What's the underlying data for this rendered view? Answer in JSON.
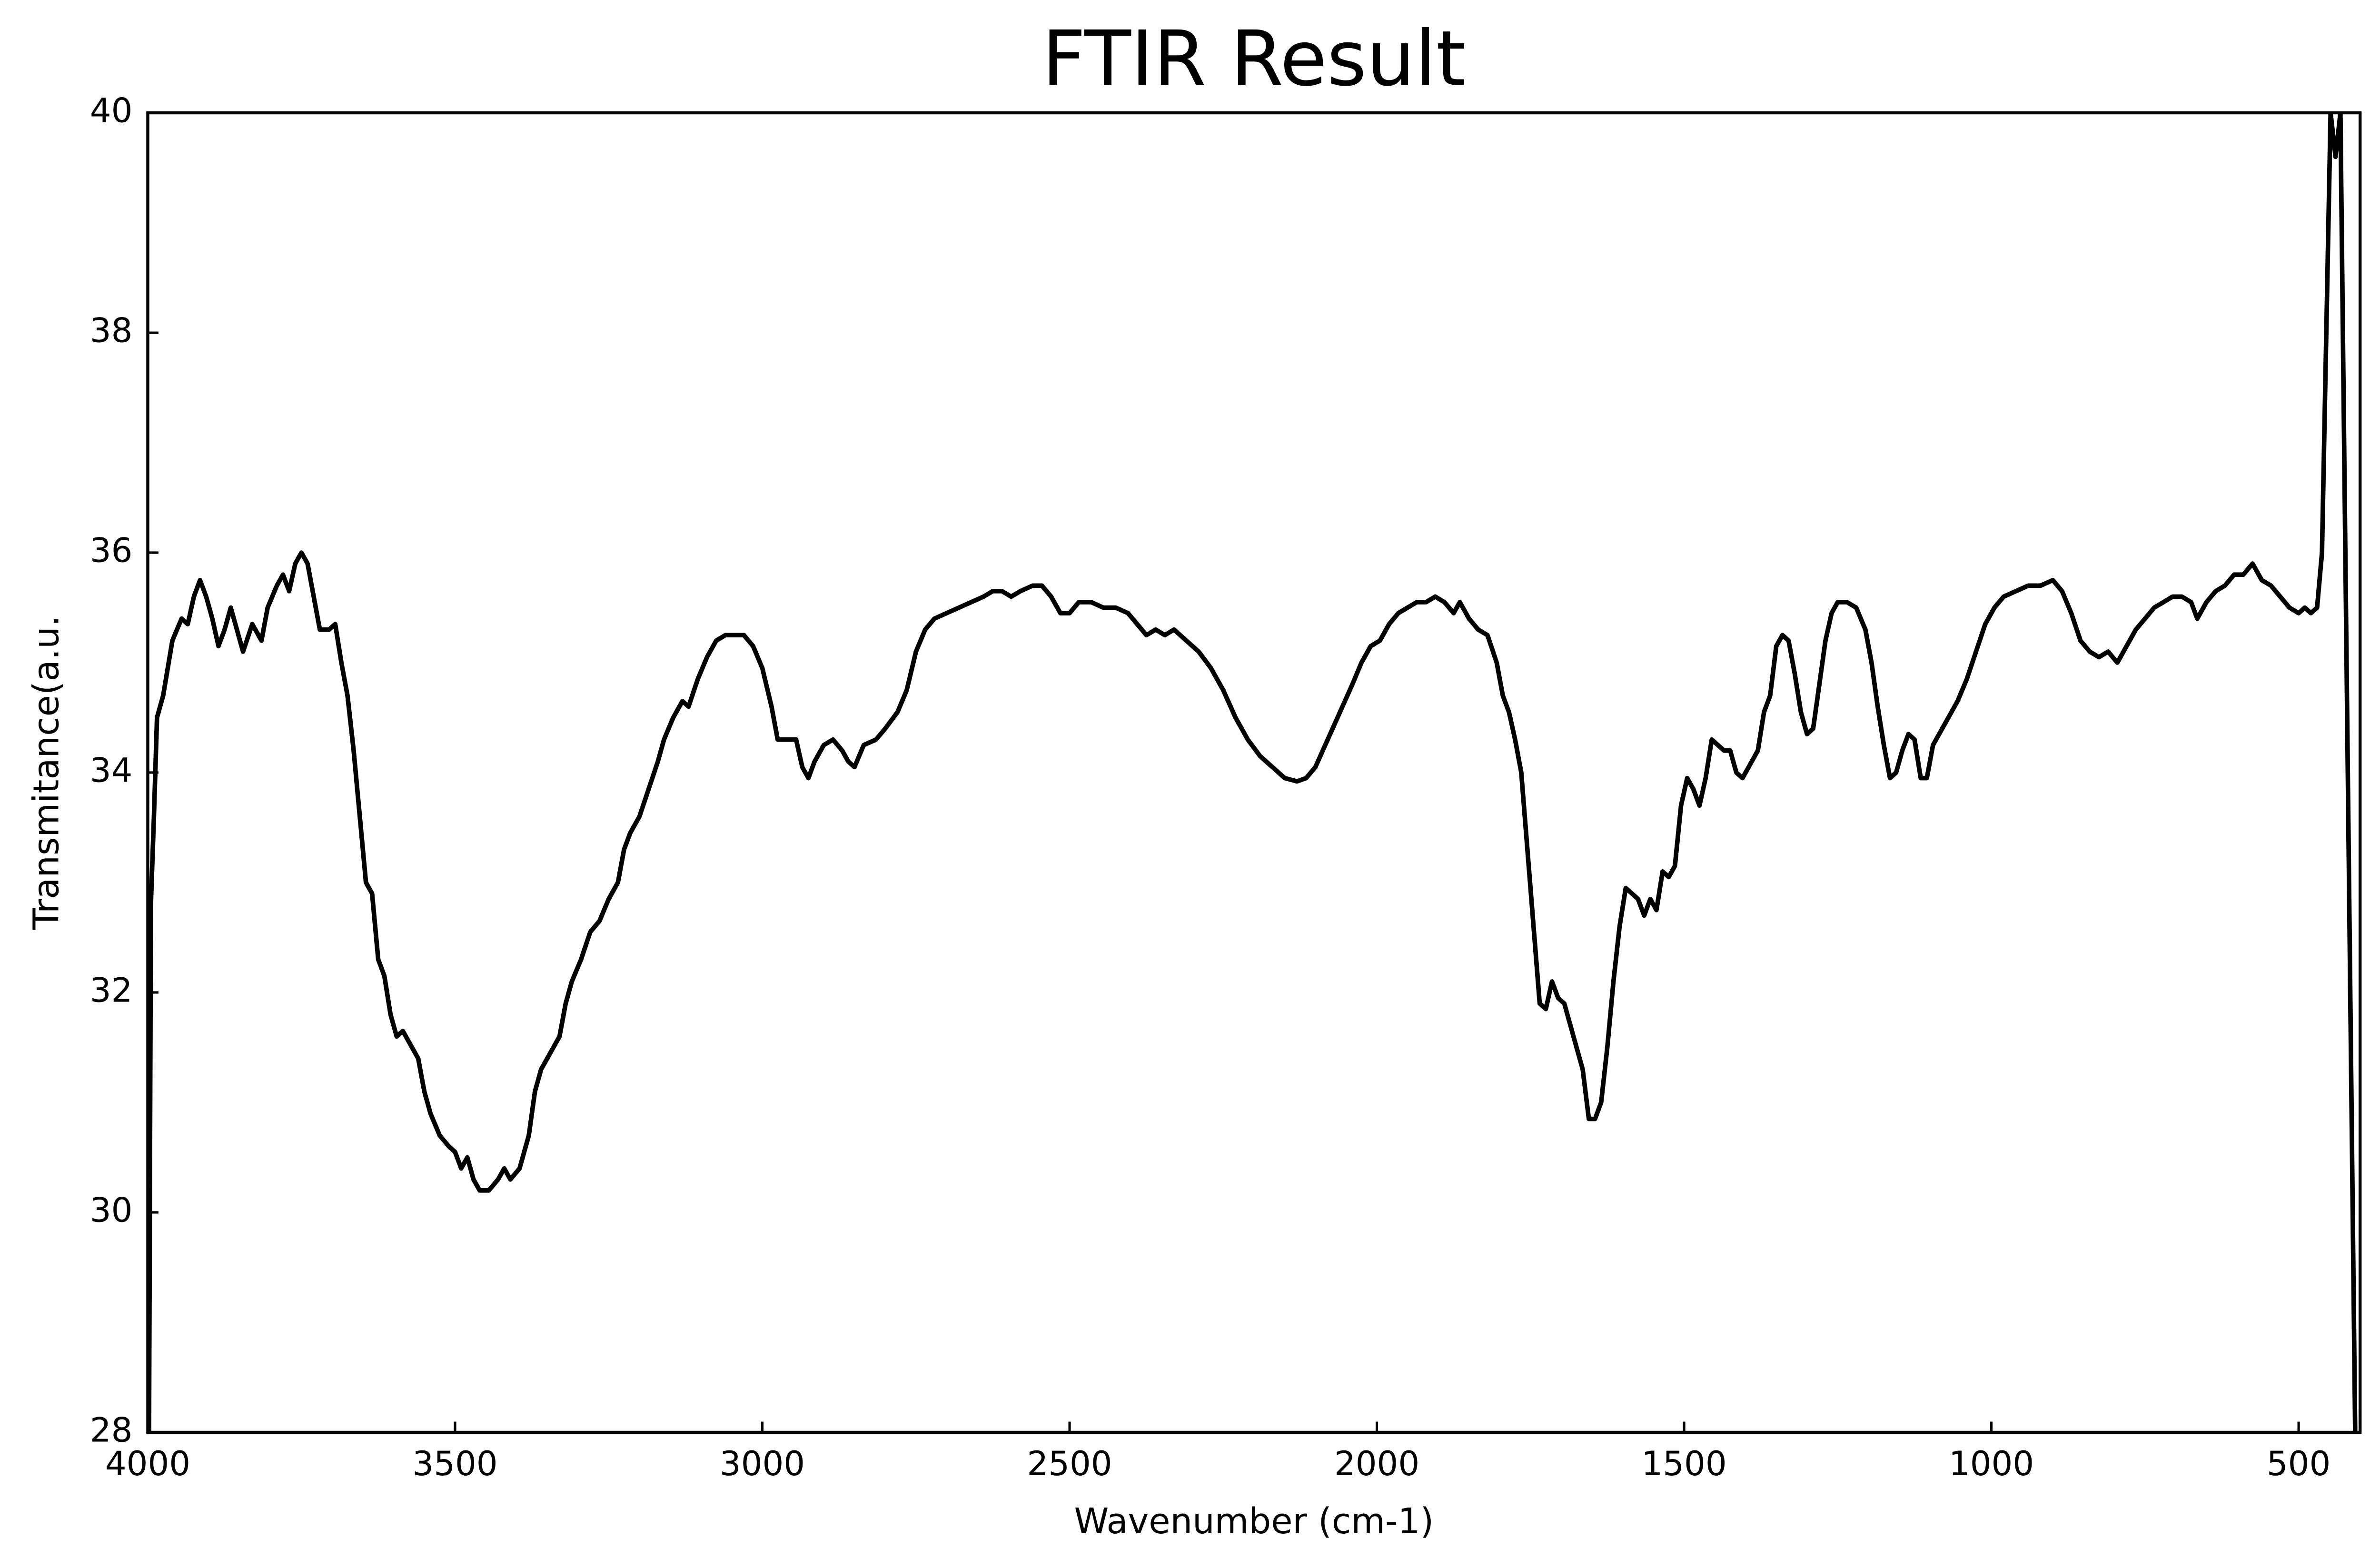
{
  "chart_data": {
    "type": "line",
    "title": "FTIR Result",
    "x_label": "Wavenumber (cm-1)",
    "y_label": "Transmitance(a.u.",
    "color": "#000000",
    "grid": false,
    "xlim": [
      4000,
      400
    ],
    "ylim": [
      28,
      40
    ],
    "xticks": [
      4000,
      3500,
      3000,
      2500,
      2000,
      1500,
      1000,
      500
    ],
    "yticks": [
      28,
      30,
      32,
      34,
      36,
      38,
      40
    ],
    "x": [
      3998,
      3995,
      3990,
      3985,
      3975,
      3960,
      3945,
      3935,
      3925,
      3915,
      3905,
      3895,
      3885,
      3875,
      3865,
      3855,
      3845,
      3830,
      3815,
      3805,
      3790,
      3780,
      3770,
      3760,
      3750,
      3740,
      3730,
      3720,
      3705,
      3695,
      3685,
      3675,
      3665,
      3655,
      3645,
      3635,
      3625,
      3615,
      3605,
      3595,
      3585,
      3575,
      3560,
      3550,
      3540,
      3525,
      3510,
      3500,
      3490,
      3480,
      3470,
      3460,
      3445,
      3430,
      3420,
      3410,
      3395,
      3380,
      3370,
      3360,
      3345,
      3330,
      3320,
      3310,
      3295,
      3280,
      3265,
      3250,
      3235,
      3225,
      3215,
      3200,
      3185,
      3170,
      3160,
      3145,
      3130,
      3120,
      3105,
      3090,
      3075,
      3060,
      3045,
      3030,
      3015,
      3000,
      2985,
      2975,
      2960,
      2945,
      2935,
      2925,
      2915,
      2900,
      2885,
      2870,
      2860,
      2850,
      2835,
      2815,
      2800,
      2780,
      2765,
      2750,
      2735,
      2720,
      2700,
      2680,
      2660,
      2640,
      2625,
      2610,
      2595,
      2580,
      2560,
      2545,
      2530,
      2515,
      2500,
      2485,
      2465,
      2445,
      2425,
      2405,
      2390,
      2375,
      2360,
      2345,
      2330,
      2310,
      2290,
      2270,
      2250,
      2230,
      2210,
      2190,
      2170,
      2150,
      2130,
      2115,
      2100,
      2080,
      2060,
      2040,
      2025,
      2010,
      1995,
      1980,
      1965,
      1950,
      1935,
      1920,
      1905,
      1890,
      1875,
      1865,
      1850,
      1835,
      1820,
      1805,
      1795,
      1785,
      1775,
      1765,
      1755,
      1745,
      1735,
      1725,
      1715,
      1705,
      1695,
      1685,
      1675,
      1665,
      1655,
      1645,
      1635,
      1625,
      1615,
      1605,
      1595,
      1585,
      1575,
      1565,
      1555,
      1545,
      1535,
      1525,
      1515,
      1505,
      1495,
      1485,
      1475,
      1465,
      1455,
      1445,
      1435,
      1425,
      1415,
      1405,
      1395,
      1380,
      1370,
      1360,
      1350,
      1340,
      1330,
      1320,
      1310,
      1300,
      1290,
      1280,
      1270,
      1260,
      1250,
      1235,
      1220,
      1205,
      1195,
      1185,
      1175,
      1165,
      1155,
      1145,
      1135,
      1125,
      1115,
      1105,
      1095,
      1085,
      1070,
      1055,
      1040,
      1025,
      1010,
      995,
      980,
      960,
      940,
      920,
      900,
      885,
      870,
      855,
      840,
      825,
      810,
      795,
      780,
      765,
      750,
      735,
      720,
      705,
      690,
      675,
      665,
      650,
      635,
      620,
      605,
      590,
      575,
      560,
      545,
      530,
      515,
      500,
      490,
      480,
      470,
      462,
      455,
      448,
      440,
      432,
      420,
      408
    ],
    "values": [
      28,
      32.8,
      33.6,
      34.5,
      34.7,
      35.2,
      35.4,
      35.35,
      35.6,
      35.75,
      35.6,
      35.4,
      35.15,
      35.3,
      35.5,
      35.3,
      35.1,
      35.35,
      35.2,
      35.5,
      35.7,
      35.8,
      35.65,
      35.9,
      36.0,
      35.9,
      35.6,
      35.3,
      35.3,
      35.35,
      35.0,
      34.7,
      34.2,
      33.6,
      33.0,
      32.9,
      32.3,
      32.15,
      31.8,
      31.6,
      31.65,
      31.55,
      31.4,
      31.1,
      30.9,
      30.7,
      30.6,
      30.55,
      30.4,
      30.5,
      30.3,
      30.2,
      30.2,
      30.3,
      30.4,
      30.3,
      30.4,
      30.7,
      31.1,
      31.3,
      31.45,
      31.6,
      31.9,
      32.1,
      32.3,
      32.55,
      32.65,
      32.85,
      33.0,
      33.3,
      33.45,
      33.6,
      33.85,
      34.1,
      34.3,
      34.5,
      34.65,
      34.6,
      34.85,
      35.05,
      35.2,
      35.25,
      35.25,
      35.25,
      35.15,
      34.95,
      34.6,
      34.3,
      34.3,
      34.3,
      34.05,
      33.95,
      34.1,
      34.25,
      34.3,
      34.2,
      34.1,
      34.05,
      34.25,
      34.3,
      34.4,
      34.55,
      34.75,
      35.1,
      35.3,
      35.4,
      35.45,
      35.5,
      35.55,
      35.6,
      35.65,
      35.65,
      35.6,
      35.65,
      35.7,
      35.7,
      35.6,
      35.45,
      35.45,
      35.55,
      35.55,
      35.5,
      35.5,
      35.45,
      35.35,
      35.25,
      35.3,
      35.25,
      35.3,
      35.2,
      35.1,
      34.95,
      34.75,
      34.5,
      34.3,
      34.15,
      34.05,
      33.95,
      33.92,
      33.95,
      34.05,
      34.3,
      34.55,
      34.8,
      35.0,
      35.15,
      35.2,
      35.35,
      35.45,
      35.5,
      35.55,
      35.55,
      35.6,
      35.55,
      35.45,
      35.55,
      35.4,
      35.3,
      35.25,
      35.0,
      34.7,
      34.55,
      34.3,
      34.0,
      33.3,
      32.6,
      31.9,
      31.85,
      32.1,
      31.95,
      31.9,
      31.7,
      31.5,
      31.3,
      30.85,
      30.85,
      31.0,
      31.5,
      32.1,
      32.6,
      32.95,
      32.9,
      32.85,
      32.7,
      32.85,
      32.75,
      33.1,
      33.05,
      33.15,
      33.7,
      33.95,
      33.85,
      33.7,
      33.95,
      34.3,
      34.25,
      34.2,
      34.2,
      34.0,
      33.95,
      34.05,
      34.2,
      34.55,
      34.7,
      35.15,
      35.25,
      35.2,
      34.9,
      34.55,
      34.35,
      34.4,
      34.8,
      35.2,
      35.45,
      35.55,
      35.55,
      35.5,
      35.3,
      35.0,
      34.6,
      34.25,
      33.95,
      34.0,
      34.2,
      34.35,
      34.3,
      33.95,
      33.95,
      34.25,
      34.35,
      34.5,
      34.65,
      34.85,
      35.1,
      35.35,
      35.5,
      35.6,
      35.65,
      35.7,
      35.7,
      35.75,
      35.65,
      35.45,
      35.2,
      35.1,
      35.05,
      35.1,
      35.0,
      35.15,
      35.3,
      35.4,
      35.5,
      35.55,
      35.6,
      35.6,
      35.55,
      35.4,
      35.55,
      35.65,
      35.7,
      35.8,
      35.8,
      35.9,
      35.75,
      35.7,
      35.6,
      35.5,
      35.45,
      35.5,
      35.45,
      35.5,
      36.0,
      38.0,
      40.0,
      39.6,
      40.0,
      34,
      28
    ]
  }
}
